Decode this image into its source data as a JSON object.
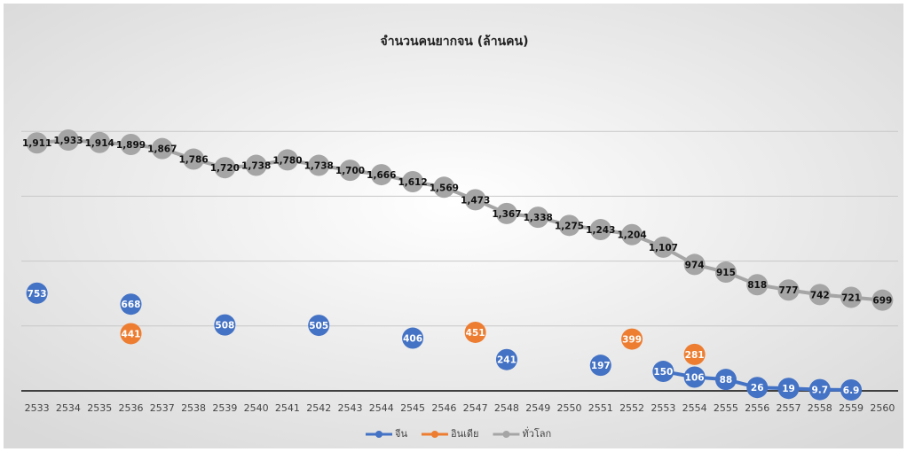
{
  "chart_data": {
    "type": "line",
    "title": "จำนวนคนยากจน (ล้านคน)",
    "categories": [
      "2533",
      "2534",
      "2535",
      "2536",
      "2537",
      "2538",
      "2539",
      "2540",
      "2541",
      "2542",
      "2543",
      "2544",
      "2545",
      "2546",
      "2547",
      "2548",
      "2549",
      "2550",
      "2551",
      "2552",
      "2553",
      "2554",
      "2555",
      "2556",
      "2557",
      "2558",
      "2559",
      "2560"
    ],
    "series": [
      {
        "name": "จีน",
        "color": "#4472c4",
        "values": [
          753,
          null,
          null,
          668,
          null,
          null,
          508,
          null,
          null,
          505,
          null,
          null,
          406,
          null,
          null,
          241,
          null,
          null,
          197,
          null,
          150,
          106,
          88,
          26,
          19,
          9.7,
          6.9,
          null
        ]
      },
      {
        "name": "อินเดีย",
        "color": "#ed7d31",
        "values": [
          null,
          null,
          null,
          441,
          null,
          null,
          null,
          null,
          null,
          null,
          null,
          null,
          null,
          null,
          451,
          null,
          null,
          null,
          null,
          399,
          null,
          281,
          null,
          null,
          null,
          null,
          null,
          null
        ]
      },
      {
        "name": "ทั่วโลก",
        "color": "#a5a5a5",
        "values": [
          1911,
          1933,
          1914,
          1899,
          1867,
          1786,
          1720,
          1738,
          1780,
          1738,
          1700,
          1666,
          1612,
          1569,
          1473,
          1367,
          1338,
          1275,
          1243,
          1204,
          1107,
          974,
          915,
          818,
          777,
          742,
          721,
          699
        ],
        "value_labels": [
          "1,911",
          "1,933",
          "1,914",
          "1,899",
          "1,867",
          "1,786",
          "1,720",
          "1,738",
          "1,780",
          "1,738",
          "1,700",
          "1,666",
          "1,612",
          "1,569",
          "1,473",
          "1,367",
          "1,338",
          "1,275",
          "1,243",
          "1,204",
          "1,107",
          "974",
          "915",
          "818",
          "777",
          "742",
          "721",
          "699"
        ]
      }
    ],
    "ylim": [
      0,
      2500
    ],
    "yticks": [
      0,
      500,
      1000,
      1500,
      2000
    ],
    "grid": true,
    "legend": "bottom"
  }
}
